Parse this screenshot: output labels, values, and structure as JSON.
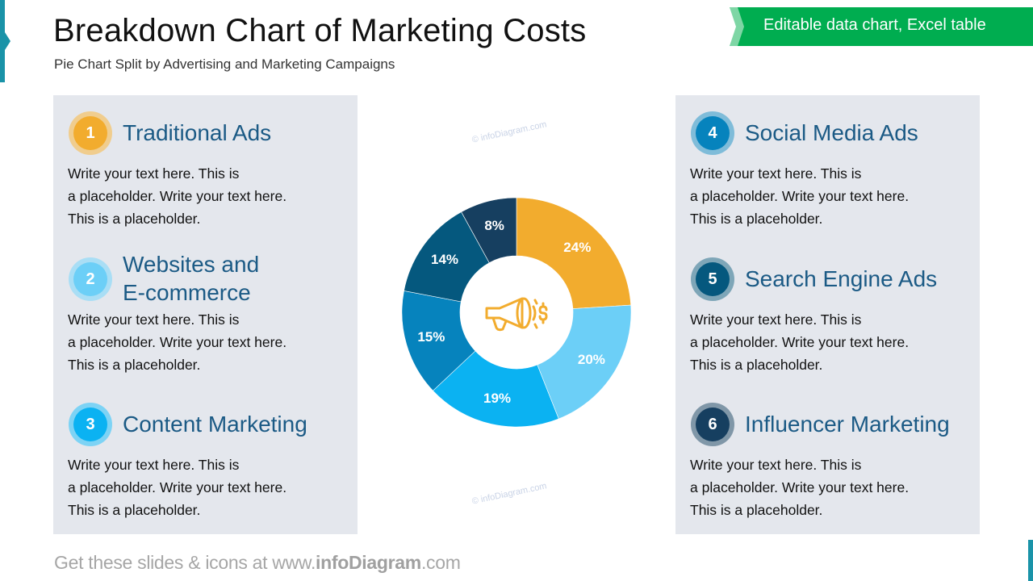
{
  "header": {
    "title": "Breakdown Chart of Marketing Costs",
    "subtitle": "Pie Chart Split by Advertising and Marketing Campaigns",
    "ribbon_label": "Editable data chart, Excel table"
  },
  "colors": {
    "accent_teal": "#1a93a8",
    "ribbon_green": "#00ad50",
    "panel_bg": "#e4e7ed",
    "item_title": "#1b5a85"
  },
  "items": [
    {
      "number": "1",
      "title": "Traditional Ads",
      "title_line2": "",
      "text": [
        "Write your text here. This is",
        "a placeholder.  Write your text here.",
        "This is a placeholder."
      ],
      "color": "#f2ac2e",
      "ring": "#f0cd8e"
    },
    {
      "number": "2",
      "title": "Websites and",
      "title_line2": "E-commerce",
      "text": [
        "Write your text here. This is",
        "a placeholder.  Write your text here.",
        "This is a placeholder."
      ],
      "color": "#6ccff7",
      "ring": "#a9def5"
    },
    {
      "number": "3",
      "title": "Content Marketing",
      "title_line2": "",
      "text": [
        "Write your text here. This is",
        "a placeholder.  Write your text here.",
        "This is a placeholder."
      ],
      "color": "#0bb2f2",
      "ring": "#7dd3f5"
    },
    {
      "number": "4",
      "title": "Social Media Ads",
      "title_line2": "",
      "text": [
        "Write your text here. This is",
        "a placeholder.  Write your text here.",
        "This is a placeholder."
      ],
      "color": "#0683bd",
      "ring": "#7fbcd9"
    },
    {
      "number": "5",
      "title": "Search Engine Ads",
      "title_line2": "",
      "text": [
        "Write your text here. This is",
        "a placeholder.  Write your text here.",
        "This is a placeholder."
      ],
      "color": "#05587e",
      "ring": "#7ea6b8"
    },
    {
      "number": "6",
      "title": "Influencer Marketing",
      "title_line2": "",
      "text": [
        "Write your text here. This is",
        "a placeholder.  Write your text here.",
        "This is a placeholder."
      ],
      "color": "#163f60",
      "ring": "#8097a8"
    }
  ],
  "center_icon": "megaphone-dollar-icon",
  "watermark": "© infoDiagram.com",
  "footer": {
    "prefix": "Get these slides & icons at www.",
    "brand": "infoDiagram",
    "suffix": ".com"
  },
  "chart_data": {
    "type": "pie",
    "variant": "donut",
    "title": "Breakdown Chart of Marketing Costs",
    "subtitle": "Pie Chart Split by Advertising and Marketing Campaigns",
    "categories": [
      "Traditional Ads",
      "Websites and E-commerce",
      "Content Marketing",
      "Social Media Ads",
      "Search Engine Ads",
      "Influencer Marketing"
    ],
    "values": [
      24,
      20,
      19,
      15,
      14,
      8
    ],
    "labels": [
      "24%",
      "20%",
      "19%",
      "15%",
      "14%",
      "8%"
    ],
    "colors": [
      "#f2ac2e",
      "#6ccff7",
      "#0bb2f2",
      "#0683bd",
      "#05587e",
      "#163f60"
    ],
    "start_angle": "12 o'clock",
    "direction": "clockwise",
    "legend": "side panels with numbered badges (1-3 left, 4-6 right)"
  }
}
